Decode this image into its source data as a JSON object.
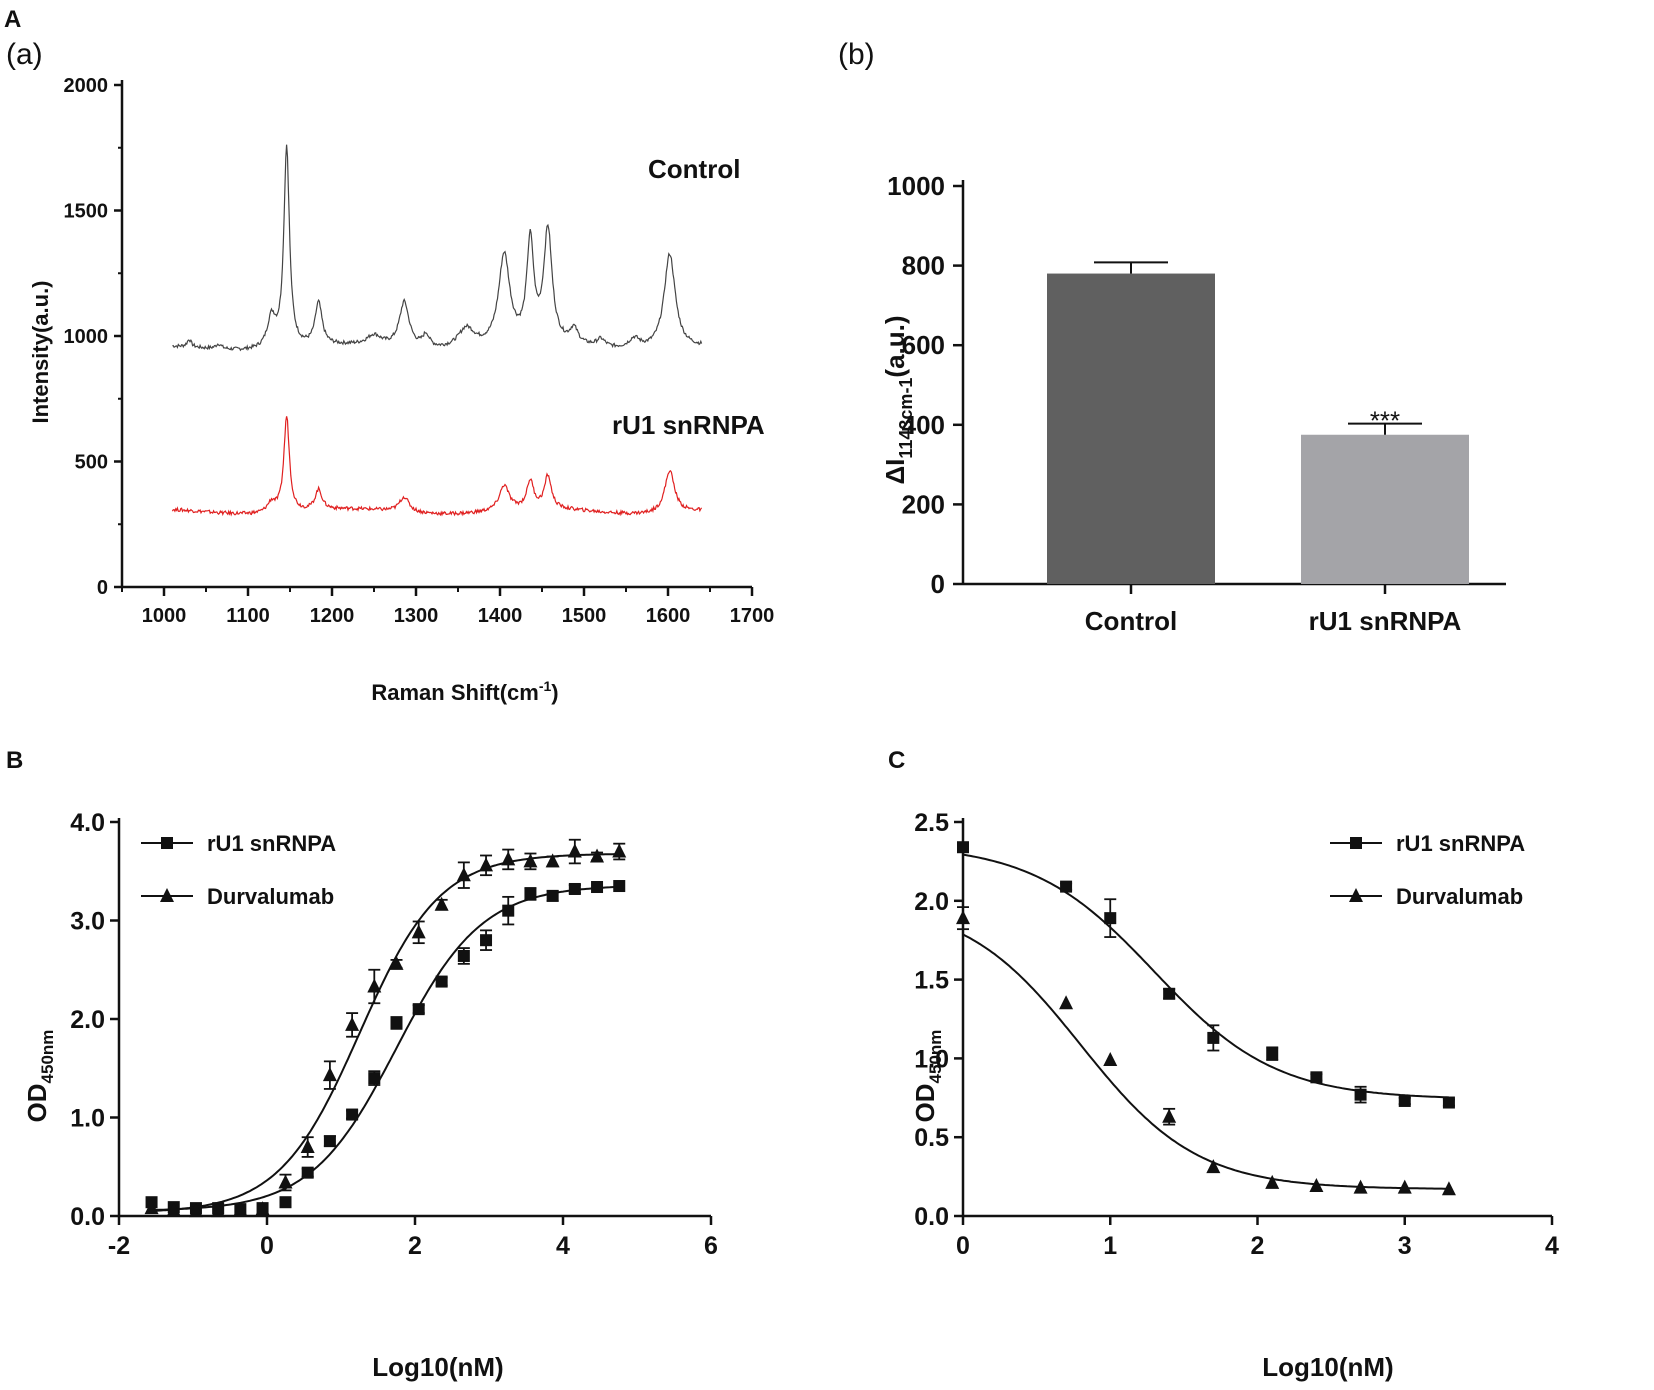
{
  "colors": {
    "control_trace": "#444444",
    "rU1_trace": "#e02020",
    "control_bar": "#606060",
    "rU1_bar": "#a4a4a8",
    "ink": "#111111"
  },
  "panel_labels": {
    "A": "A",
    "a": "(a)",
    "b": "(b)",
    "B": "B",
    "C": "C"
  },
  "chart_data": [
    {
      "id": "Aa",
      "type": "line",
      "title": "",
      "xlabel": "Raman Shift(cm",
      "xlabel_sup": "-1",
      "xlabel_close": ")",
      "ylabel": "Intensity(a.u.)",
      "xlim": [
        950,
        1700
      ],
      "ylim": [
        0,
        2000
      ],
      "xticks": [
        1000,
        1100,
        1200,
        1300,
        1400,
        1500,
        1600,
        1700
      ],
      "yticks": [
        0,
        500,
        1000,
        1500,
        2000
      ],
      "annotations": [
        "Control",
        "rU1 snRNPA"
      ],
      "series": [
        {
          "name": "Control",
          "baseline": 950,
          "peaks": [
            {
              "x": 1030,
              "h": 30,
              "w": 3
            },
            {
              "x": 1065,
              "h": 20,
              "w": 4
            },
            {
              "x": 1128,
              "h": 120,
              "w": 6
            },
            {
              "x": 1146,
              "h": 800,
              "w": 4
            },
            {
              "x": 1184,
              "h": 170,
              "w": 5
            },
            {
              "x": 1250,
              "h": 40,
              "w": 10
            },
            {
              "x": 1286,
              "h": 180,
              "w": 7
            },
            {
              "x": 1312,
              "h": 50,
              "w": 5
            },
            {
              "x": 1360,
              "h": 80,
              "w": 12
            },
            {
              "x": 1405,
              "h": 360,
              "w": 8
            },
            {
              "x": 1436,
              "h": 400,
              "w": 5
            },
            {
              "x": 1457,
              "h": 450,
              "w": 6
            },
            {
              "x": 1488,
              "h": 60,
              "w": 6
            },
            {
              "x": 1520,
              "h": 30,
              "w": 6
            },
            {
              "x": 1560,
              "h": 40,
              "w": 8
            },
            {
              "x": 1602,
              "h": 380,
              "w": 8
            }
          ],
          "x_range": [
            1010,
            1640
          ]
        },
        {
          "name": "rU1 snRNPA",
          "baseline": 300,
          "peaks": [
            {
              "x": 1128,
              "h": 40,
              "w": 6
            },
            {
              "x": 1146,
              "h": 380,
              "w": 4
            },
            {
              "x": 1184,
              "h": 80,
              "w": 5
            },
            {
              "x": 1286,
              "h": 60,
              "w": 7
            },
            {
              "x": 1405,
              "h": 100,
              "w": 7
            },
            {
              "x": 1436,
              "h": 110,
              "w": 5
            },
            {
              "x": 1457,
              "h": 130,
              "w": 5
            },
            {
              "x": 1602,
              "h": 170,
              "w": 7
            }
          ],
          "x_range": [
            1010,
            1640
          ]
        }
      ]
    },
    {
      "id": "Ab",
      "type": "bar",
      "ylabel_prefix": "ΔI",
      "ylabel_sub": "1143cm-1",
      "ylabel_suffix": "(a.u.)",
      "ylim": [
        0,
        1000
      ],
      "yticks": [
        0,
        200,
        400,
        600,
        800,
        1000
      ],
      "categories": [
        "Control",
        "rU1 snRNPA"
      ],
      "values": [
        780,
        375
      ],
      "errors": [
        28,
        28
      ],
      "significance": [
        "",
        "***"
      ]
    },
    {
      "id": "B",
      "type": "scatter",
      "xlabel": "Log10(nM)",
      "ylabel_main": "OD",
      "ylabel_sub": "450nm",
      "xlim": [
        -2,
        6
      ],
      "ylim": [
        0,
        4
      ],
      "xticks": [
        -2,
        0,
        2,
        4,
        6
      ],
      "yticks": [
        "0.0",
        "1.0",
        "2.0",
        "3.0",
        "4.0"
      ],
      "legend_position": "top-left",
      "series": [
        {
          "name": "rU1 snRNPA",
          "marker": "square",
          "x": [
            -1.56,
            -1.26,
            -0.96,
            -0.66,
            -0.36,
            -0.06,
            0.25,
            0.55,
            0.85,
            1.15,
            1.45,
            1.75,
            2.05,
            2.36,
            2.66,
            2.96,
            3.26,
            3.56,
            3.86,
            4.16,
            4.46,
            4.76
          ],
          "y": [
            0.14,
            0.09,
            0.08,
            0.08,
            0.07,
            0.08,
            0.14,
            0.44,
            0.76,
            1.03,
            1.4,
            1.96,
            2.1,
            2.38,
            2.64,
            2.8,
            3.1,
            3.27,
            3.25,
            3.32,
            3.34,
            3.35
          ],
          "err": [
            0.03,
            0.02,
            0.02,
            0.02,
            0.02,
            0.02,
            0.03,
            0.04,
            0.05,
            0.04,
            0.07,
            0.06,
            0.04,
            0.04,
            0.08,
            0.1,
            0.14,
            0.06,
            0.05,
            0.04,
            0.03,
            0.03
          ],
          "fit": {
            "bottom": 0.05,
            "top": 3.36,
            "logec50": 1.75,
            "hill": 0.75
          }
        },
        {
          "name": "Durvalumab",
          "marker": "triangle",
          "x": [
            -1.56,
            -1.26,
            -0.96,
            -0.66,
            -0.36,
            -0.06,
            0.25,
            0.55,
            0.85,
            1.15,
            1.45,
            1.75,
            2.05,
            2.36,
            2.66,
            2.96,
            3.26,
            3.56,
            3.86,
            4.16,
            4.46,
            4.76
          ],
          "y": [
            0.08,
            0.06,
            0.05,
            0.05,
            0.06,
            0.07,
            0.34,
            0.7,
            1.43,
            1.94,
            2.33,
            2.56,
            2.88,
            3.16,
            3.46,
            3.56,
            3.62,
            3.6,
            3.6,
            3.7,
            3.65,
            3.7
          ],
          "err": [
            0.02,
            0.02,
            0.02,
            0.02,
            0.02,
            0.02,
            0.08,
            0.1,
            0.14,
            0.12,
            0.17,
            0.04,
            0.11,
            0.05,
            0.13,
            0.1,
            0.1,
            0.08,
            0.05,
            0.12,
            0.04,
            0.08
          ],
          "fit": {
            "bottom": 0.03,
            "top": 3.68,
            "logec50": 1.25,
            "hill": 0.8
          }
        }
      ]
    },
    {
      "id": "C",
      "type": "scatter",
      "xlabel": "Log10(nM)",
      "ylabel_main": "OD",
      "ylabel_sub": "450nm",
      "xlim": [
        0,
        4
      ],
      "ylim": [
        0,
        2.5
      ],
      "xticks": [
        0,
        1,
        2,
        3,
        4
      ],
      "yticks": [
        "0.0",
        "0.5",
        "1.0",
        "1.5",
        "2.0",
        "2.5"
      ],
      "legend_position": "top-right",
      "series": [
        {
          "name": "rU1 snRNPA",
          "marker": "square",
          "x": [
            0,
            0.7,
            1.0,
            1.4,
            1.7,
            2.1,
            2.4,
            2.7,
            3.0,
            3.3
          ],
          "y": [
            2.34,
            2.09,
            1.89,
            1.41,
            1.13,
            1.03,
            0.88,
            0.77,
            0.73,
            0.72
          ],
          "err": [
            0.02,
            0.02,
            0.12,
            0.03,
            0.08,
            0.04,
            0.02,
            0.05,
            0.02,
            0.02
          ],
          "fit": {
            "bottom": 0.74,
            "top": 2.36,
            "logec50": 1.3,
            "hill": 1.05
          }
        },
        {
          "name": "Durvalumab",
          "marker": "triangle",
          "x": [
            0,
            0.7,
            1.0,
            1.4,
            1.7,
            2.1,
            2.4,
            2.7,
            3.0,
            3.3
          ],
          "y": [
            1.89,
            1.35,
            0.99,
            0.63,
            0.31,
            0.21,
            0.19,
            0.18,
            0.18,
            0.17
          ],
          "err": [
            0.07,
            0.01,
            0.01,
            0.05,
            0.01,
            0.01,
            0.01,
            0.01,
            0.01,
            0.01
          ],
          "fit": {
            "bottom": 0.17,
            "top": 2.0,
            "logec50": 0.8,
            "hill": 1.1
          }
        }
      ]
    }
  ]
}
